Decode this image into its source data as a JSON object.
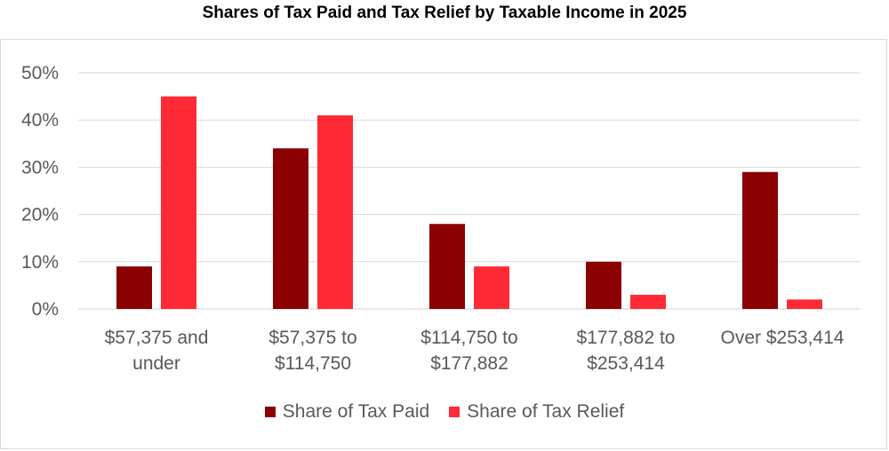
{
  "chart_data": {
    "type": "bar",
    "title": "Shares of Tax Paid and Tax Relief by Taxable Income in 2025",
    "xlabel": "",
    "ylabel": "",
    "categories": [
      [
        "$57,375 and",
        "under"
      ],
      [
        "$57,375 to",
        "$114,750"
      ],
      [
        "$114,750 to",
        "$177,882"
      ],
      [
        "$177,882 to",
        "$253,414"
      ],
      [
        "Over $253,414"
      ]
    ],
    "series": [
      {
        "name": "Share of Tax Paid",
        "color": "#8b0000",
        "values": [
          9,
          34,
          18,
          10,
          29
        ]
      },
      {
        "name": "Share of Tax Relief",
        "color": "#ff2a35",
        "values": [
          45,
          41,
          9,
          3,
          2
        ]
      }
    ],
    "yticks": [
      "0%",
      "10%",
      "20%",
      "30%",
      "40%",
      "50%"
    ],
    "ylim": [
      0,
      50
    ],
    "grid": true,
    "legend_position": "bottom"
  }
}
